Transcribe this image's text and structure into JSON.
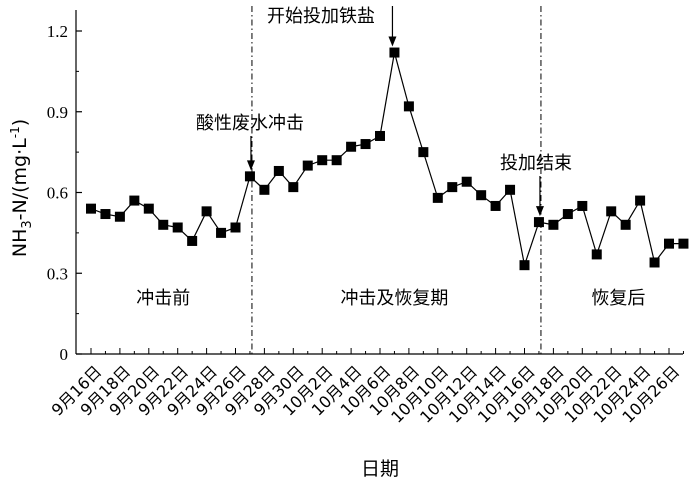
{
  "chart_data": {
    "type": "line",
    "xlabel": "日期",
    "ylabel": "NH₃-N/(mg·L⁻¹)",
    "ylabel_parts": {
      "a": "NH",
      "sub": "3",
      "b": "-N/(mg·L",
      "sup": "-1",
      "c": ")"
    },
    "ylim": [
      0,
      1.2
    ],
    "yticks": [
      "0",
      "0.3",
      "0.6",
      "0.9",
      "1.2"
    ],
    "ytick_values": [
      0,
      0.3,
      0.6,
      0.9,
      1.2
    ],
    "grid": false,
    "x_tick_labels": [
      "9月16日",
      "9月18日",
      "9月20日",
      "9月22日",
      "9月24日",
      "9月26日",
      "9月28日",
      "9月30日",
      "10月2日",
      "10月4日",
      "10月6日",
      "10月8日",
      "10月10日",
      "10月12日",
      "10月14日",
      "10月16日",
      "10月18日",
      "10月20日",
      "10月22日",
      "10月24日",
      "10月26日"
    ],
    "series": [
      {
        "marker": "square",
        "values": [
          0.54,
          0.52,
          0.51,
          0.57,
          0.54,
          0.48,
          0.47,
          0.42,
          0.53,
          0.45,
          0.47,
          0.66,
          0.61,
          0.68,
          0.62,
          0.7,
          0.72,
          0.72,
          0.77,
          0.78,
          0.81,
          1.12,
          0.92,
          0.75,
          0.58,
          0.62,
          0.64,
          0.59,
          0.55,
          0.61,
          0.33,
          0.49,
          0.48,
          0.52,
          0.55,
          0.37,
          0.53,
          0.48,
          0.57,
          0.34,
          0.41,
          0.41
        ]
      }
    ],
    "phase_dividers": [
      11,
      31
    ],
    "phases": [
      {
        "label": "冲击前",
        "at": 5
      },
      {
        "label": "冲击及恢复期",
        "at": 21
      },
      {
        "label": "恢复后",
        "at": 36.5
      }
    ],
    "annotations": [
      {
        "text": "酸性废水冲击",
        "point": 11
      },
      {
        "text": "开始投加铁盐",
        "point": 21
      },
      {
        "text": "投加结束",
        "point": 31
      }
    ]
  }
}
